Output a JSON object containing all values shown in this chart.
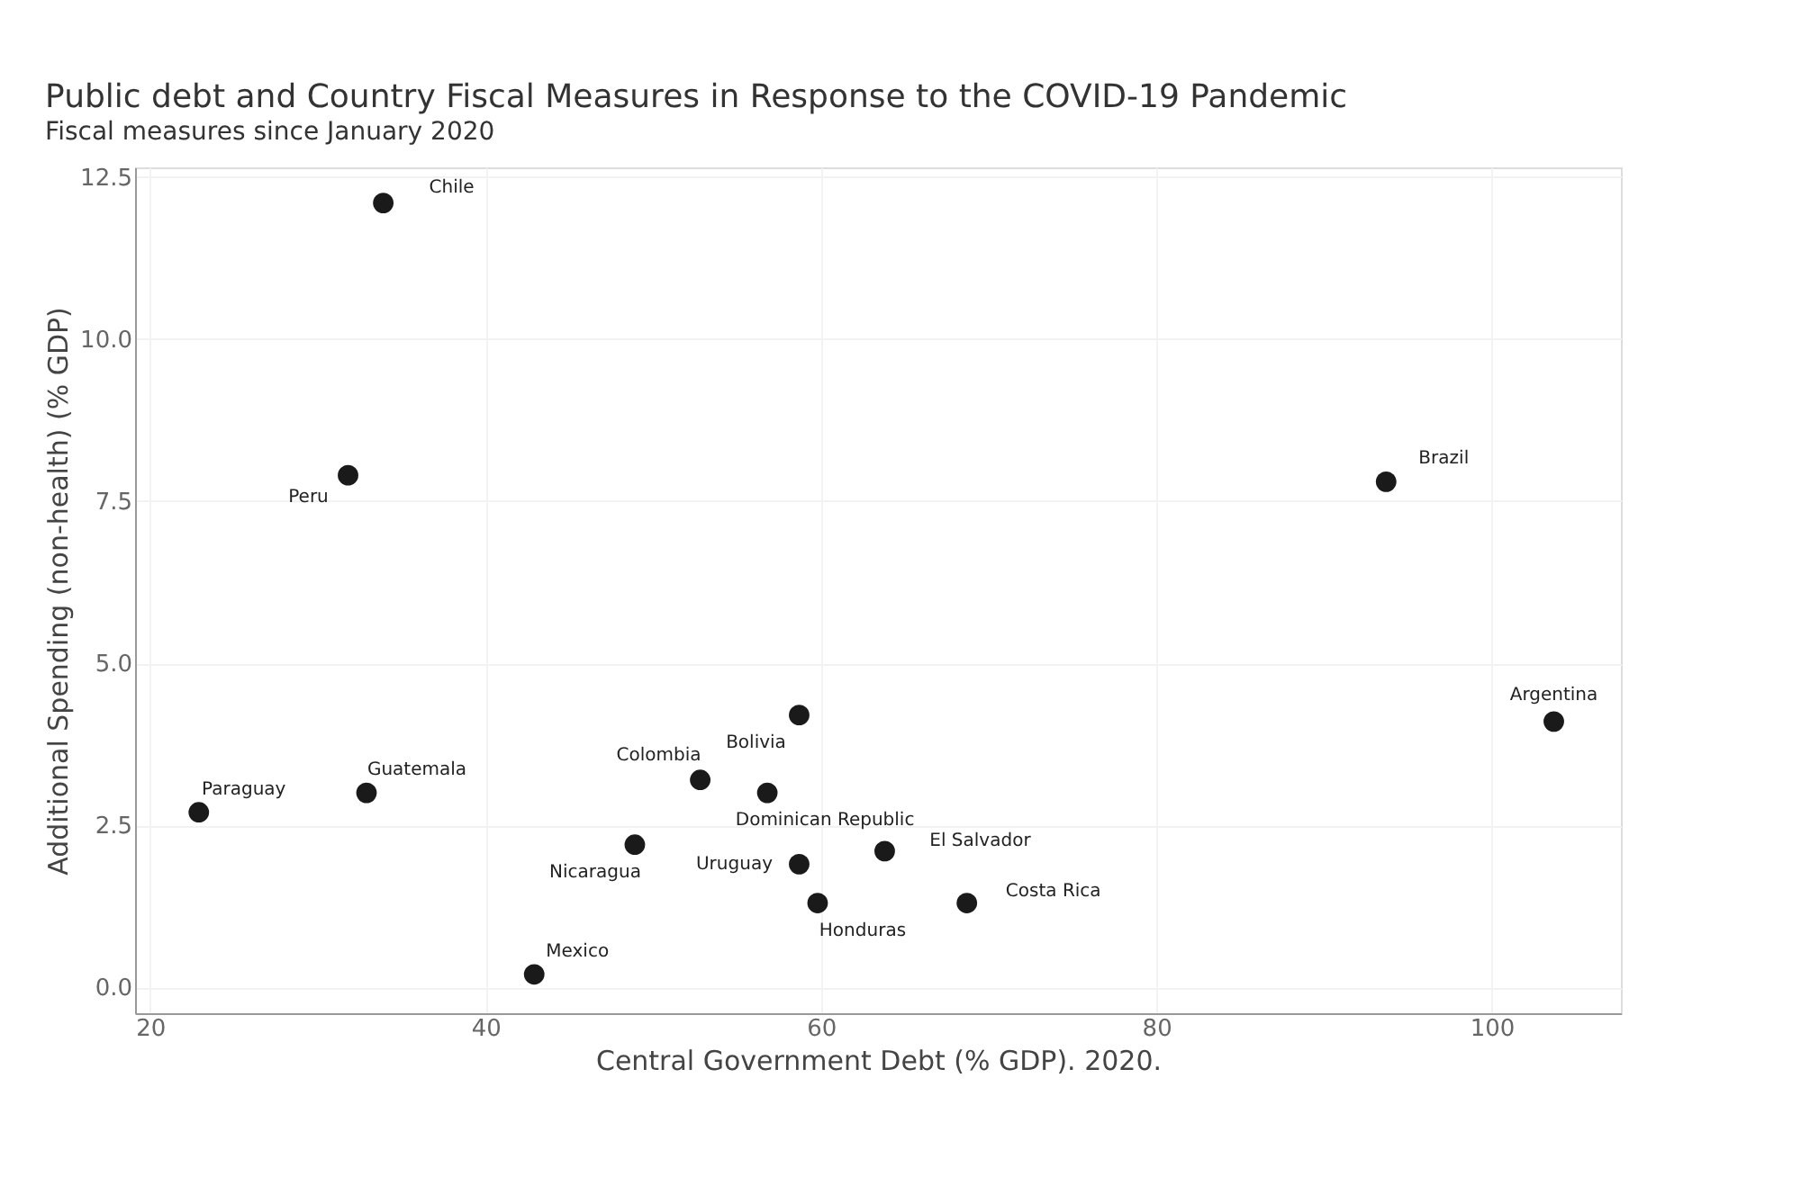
{
  "chart_data": {
    "type": "scatter",
    "title": "Public debt and Country Fiscal Measures in Response to the COVID-19 Pandemic",
    "subtitle": "Fiscal measures since January 2020",
    "xlabel": "Central Government Debt (% GDP). 2020.",
    "ylabel": "Additional Spending (non-health) (% GDP)",
    "x": [
      33.9,
      31.8,
      93.7,
      103.7,
      22.9,
      32.9,
      52.8,
      58.7,
      56.8,
      48.9,
      58.7,
      63.8,
      59.8,
      68.7,
      42.9
    ],
    "series": [
      {
        "color": "#1a1a1a",
        "values": [
          12.1,
          7.9,
          7.8,
          4.1,
          2.7,
          3.0,
          3.2,
          4.2,
          3.0,
          2.2,
          1.9,
          2.1,
          1.3,
          1.3,
          0.2
        ]
      }
    ],
    "annotations": [
      {
        "text": "Chile",
        "x": 33.9,
        "y": 12.1
      },
      {
        "text": "Peru",
        "x": 31.8,
        "y": 7.9
      },
      {
        "text": "Brazil",
        "x": 93.7,
        "y": 7.8
      },
      {
        "text": "Argentina",
        "x": 103.7,
        "y": 4.1
      },
      {
        "text": "Paraguay",
        "x": 22.9,
        "y": 2.7
      },
      {
        "text": "Guatemala",
        "x": 32.9,
        "y": 3.0
      },
      {
        "text": "Colombia",
        "x": 52.8,
        "y": 3.2
      },
      {
        "text": "Bolivia",
        "x": 58.7,
        "y": 4.2
      },
      {
        "text": "Dominican Republic",
        "x": 56.8,
        "y": 3.0
      },
      {
        "text": "Nicaragua",
        "x": 48.9,
        "y": 2.2
      },
      {
        "text": "Uruguay",
        "x": 58.7,
        "y": 1.9
      },
      {
        "text": "El Salvador",
        "x": 63.8,
        "y": 2.1
      },
      {
        "text": "Honduras",
        "x": 59.8,
        "y": 1.3
      },
      {
        "text": "Costa Rica",
        "x": 68.7,
        "y": 1.3
      },
      {
        "text": "Mexico",
        "x": 42.9,
        "y": 0.2
      }
    ],
    "xlim": [
      19.1,
      107.7
    ],
    "ylim": [
      -0.4,
      12.65
    ],
    "xticks": [
      20,
      40,
      60,
      80,
      100
    ],
    "yticks": [
      {
        "value": 0,
        "label": "0.0"
      },
      {
        "value": 2.5,
        "label": "2.5"
      },
      {
        "value": 5,
        "label": "5.0"
      },
      {
        "value": 7.5,
        "label": "7.5"
      },
      {
        "value": 10,
        "label": "10.0"
      },
      {
        "value": 12.5,
        "label": "12.5"
      }
    ],
    "grid": true,
    "marker": "circle"
  }
}
